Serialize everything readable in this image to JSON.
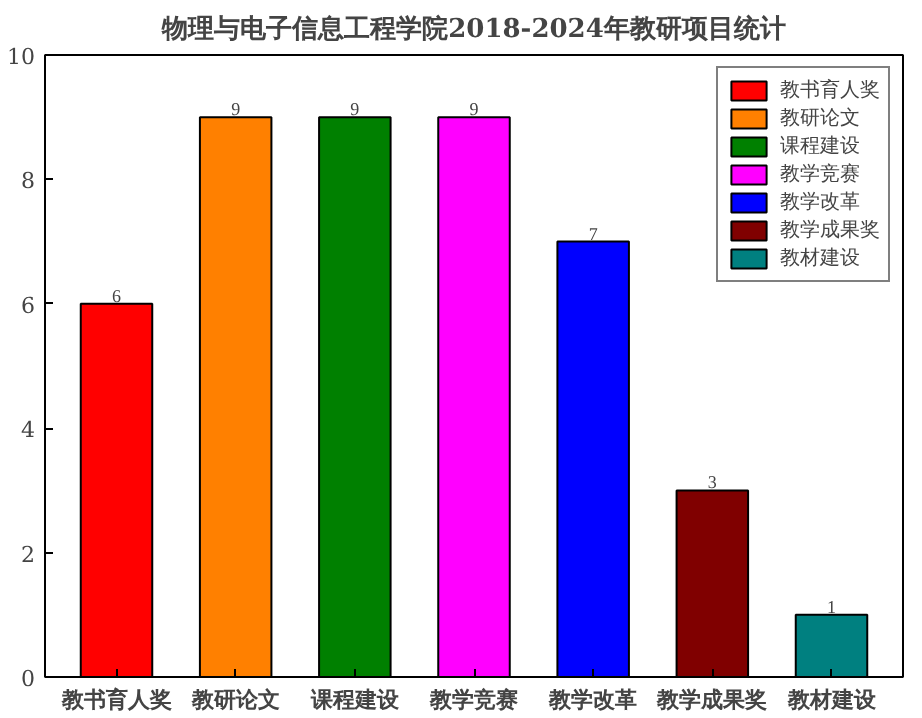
{
  "chart_data": {
    "type": "bar",
    "title": "物理与电子信息工程学院2018-2024年教研项目统计",
    "categories": [
      "教书育人奖",
      "教研论文",
      "课程建设",
      "教学竞赛",
      "教学改革",
      "教学成果奖",
      "教材建设"
    ],
    "series": [
      {
        "name": "教书育人奖",
        "color": "#ff0000",
        "values": [
          6,
          null,
          null,
          null,
          null,
          null,
          null
        ]
      },
      {
        "name": "教研论文",
        "color": "#ff8000",
        "values": [
          null,
          9,
          null,
          null,
          null,
          null,
          null
        ]
      },
      {
        "name": "课程建设",
        "color": "#008000",
        "values": [
          null,
          null,
          9,
          null,
          null,
          null,
          null
        ]
      },
      {
        "name": "教学竞赛",
        "color": "#ff00ff",
        "values": [
          null,
          null,
          null,
          9,
          null,
          null,
          null
        ]
      },
      {
        "name": "教学改革",
        "color": "#0000ff",
        "values": [
          null,
          null,
          null,
          null,
          7,
          null,
          null
        ]
      },
      {
        "name": "教学成果奖",
        "color": "#800000",
        "values": [
          null,
          null,
          null,
          null,
          null,
          3,
          null
        ]
      },
      {
        "name": "教材建设",
        "color": "#008080",
        "values": [
          null,
          null,
          null,
          null,
          null,
          null,
          1
        ]
      }
    ],
    "ylim": [
      0,
      10
    ],
    "yticks": [
      0,
      2,
      4,
      6,
      8,
      10
    ],
    "data_labels": true,
    "legend": "top right",
    "grid": false
  }
}
